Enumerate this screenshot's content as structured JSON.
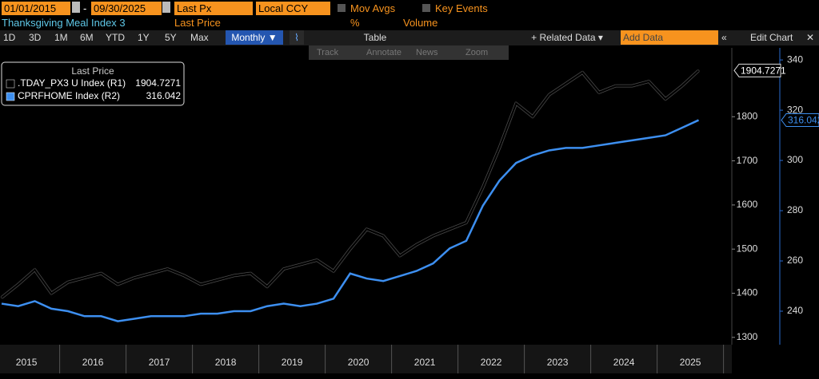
{
  "ui": {
    "start_date": "01/01/2015",
    "end_date": "09/30/2025",
    "field": "Last Px",
    "currency": "Local CCY",
    "mov_avgs": "Mov Avgs",
    "key_events": "Key Events",
    "security": "Thanksgiving Meal Index 3",
    "field_label": "Last Price",
    "pct": "%",
    "volume": "Volume",
    "periods": [
      "1D",
      "3D",
      "1M",
      "6M",
      "YTD",
      "1Y",
      "5Y",
      "Max"
    ],
    "frequency": "Monthly ▼",
    "table": "Table",
    "related": "+ Related Data ▾",
    "add_data": "Add Data",
    "edit_chart": "Edit Chart",
    "tools": [
      "Track",
      "Annotate",
      "News",
      "Zoom"
    ]
  },
  "chart_data": {
    "type": "line",
    "legend_title": "Last Price",
    "legend": "upper left",
    "categories": [
      null,
      null,
      "2015",
      null,
      null,
      null,
      "2016",
      null,
      null,
      null,
      "2017",
      null,
      null,
      null,
      "2018",
      null,
      null,
      null,
      "2019",
      null,
      null,
      null,
      "2020",
      null,
      null,
      null,
      "2021",
      null,
      null,
      null,
      "2022",
      null,
      null,
      null,
      "2023",
      null,
      null,
      null,
      "2024",
      null,
      null,
      null,
      "2025"
    ],
    "series": [
      {
        "name": ".TDAY_PX3 U Index  (R1)",
        "color": "#000000",
        "axis": "y",
        "values": [
          1390,
          1420,
          1453,
          1400,
          1425,
          1435,
          1445,
          1420,
          1435,
          1445,
          1455,
          1440,
          1420,
          1430,
          1440,
          1445,
          1415,
          1455,
          1465,
          1475,
          1450,
          1500,
          1545,
          1530,
          1485,
          1510,
          1530,
          1545,
          1560,
          1640,
          1730,
          1830,
          1800,
          1850,
          1875,
          1900,
          1855,
          1870,
          1870,
          1880,
          1840,
          1870,
          1904.7271
        ]
      },
      {
        "name": "CPRFHOME Index  (R2)",
        "color": "#3d8ff0",
        "axis": "y2",
        "values": [
          243,
          242,
          244,
          241,
          240,
          238,
          238,
          236,
          237,
          238,
          238,
          238,
          239,
          239,
          240,
          240,
          242,
          243,
          242,
          243,
          245,
          255,
          253,
          252,
          254,
          256,
          259,
          265,
          268,
          282,
          292,
          299,
          302,
          304,
          305,
          305,
          306,
          307,
          308,
          309,
          310,
          313,
          316.042
        ]
      }
    ],
    "ylim": [
      1287,
      1956
    ],
    "yticks": [
      1300,
      1400,
      1500,
      1600,
      1700,
      1800
    ],
    "y2lim": [
      227.3,
      344.8
    ],
    "y2ticks": [
      240,
      260,
      280,
      300,
      320,
      340
    ]
  }
}
